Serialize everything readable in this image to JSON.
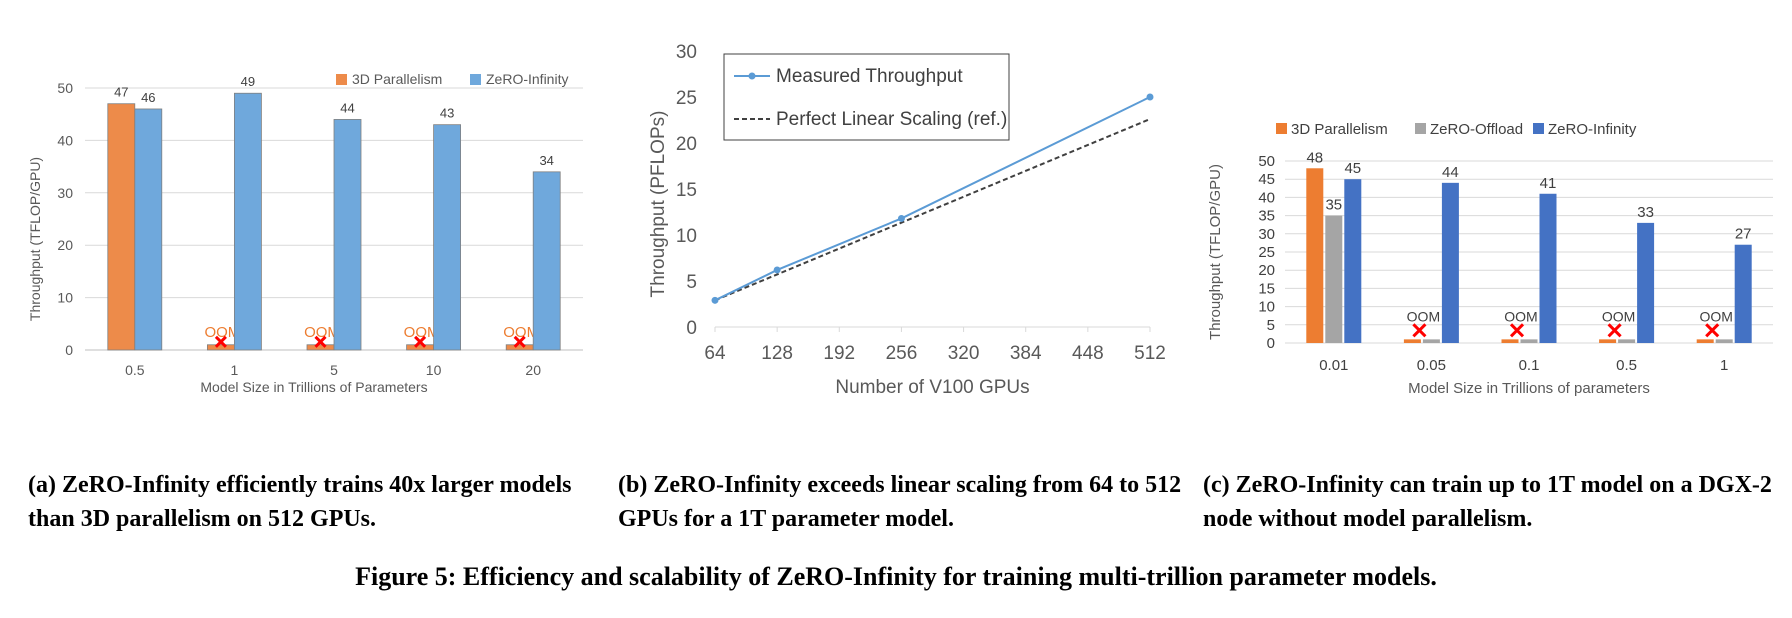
{
  "colors": {
    "orange": "#ED8B4A",
    "light_blue": "#6FA8DC",
    "dark_blue": "#4472C4",
    "gray": "#A5A5A5",
    "bright_orange": "#ED7D31",
    "oom_red": "#FF0000",
    "line_blue": "#5B9BD5"
  },
  "captions": {
    "a": "(a) ZeRO-Infinity efficiently trains 40x larger models than 3D parallelism on 512 GPUs.",
    "b": "(b) ZeRO-Infinity exceeds linear scaling from 64 to 512 GPUs for a 1T parameter model.",
    "c": "(c) ZeRO-Infinity can train up to 1T model on a DGX-2 node without model parallelism.",
    "figure": "Figure 5: Efficiency and scalability of ZeRO-Infinity for training multi-trillion parameter models."
  },
  "oom_label": "OOM",
  "chart_data": [
    {
      "type": "bar",
      "xlabel": "Model Size in Trillions of Parameters",
      "ylabel": "Throughput (TFLOP/GPU)",
      "ylim": [
        0,
        50
      ],
      "yticks": [
        0,
        10,
        20,
        30,
        40,
        50
      ],
      "grid": true,
      "legend": "top-right",
      "categories": [
        "0.5",
        "1",
        "5",
        "10",
        "20"
      ],
      "series": [
        {
          "name": "3D Parallelism",
          "values": [
            47,
            1,
            1,
            1,
            1
          ],
          "labels": [
            "47",
            "OOM",
            "OOM",
            "OOM",
            "OOM"
          ],
          "oom": [
            false,
            true,
            true,
            true,
            true
          ]
        },
        {
          "name": "ZeRO-Infinity",
          "values": [
            46,
            49,
            44,
            43,
            34
          ],
          "labels": [
            "46",
            "49",
            "44",
            "43",
            "34"
          ],
          "oom": [
            false,
            false,
            false,
            false,
            false
          ]
        }
      ]
    },
    {
      "type": "line",
      "xlabel": "Number of V100 GPUs",
      "ylabel": "Throughput (PFLOPs)",
      "xlim": [
        64,
        512
      ],
      "ylim": [
        0,
        30
      ],
      "xticks": [
        64,
        128,
        192,
        256,
        320,
        384,
        448,
        512
      ],
      "yticks": [
        0,
        5,
        10,
        15,
        20,
        25,
        30
      ],
      "legend": "top-left",
      "series": [
        {
          "name": "Measured Throughput",
          "x": [
            64,
            128,
            256,
            512
          ],
          "y": [
            2.9,
            6.2,
            11.8,
            25.0
          ],
          "style": "solid-markers"
        },
        {
          "name": "Perfect Linear Scaling (ref.)",
          "x": [
            64,
            512
          ],
          "y": [
            2.9,
            22.6
          ],
          "style": "dashed"
        }
      ]
    },
    {
      "type": "bar",
      "xlabel": "Model Size in Trillions of parameters",
      "ylabel": "Throughput (TFLOP/GPU)",
      "ylim": [
        0,
        50
      ],
      "yticks": [
        0,
        5,
        10,
        15,
        20,
        25,
        30,
        35,
        40,
        45,
        50
      ],
      "grid": true,
      "legend": "top",
      "categories": [
        "0.01",
        "0.05",
        "0.1",
        "0.5",
        "1"
      ],
      "series": [
        {
          "name": "3D Parallelism",
          "values": [
            48,
            1,
            1,
            1,
            1
          ],
          "labels": [
            "48",
            "",
            "",
            "",
            ""
          ],
          "oom": [
            false,
            true,
            true,
            true,
            true
          ]
        },
        {
          "name": "ZeRO-Offload",
          "values": [
            35,
            1,
            1,
            1,
            1
          ],
          "labels": [
            "35",
            "",
            "",
            "",
            ""
          ],
          "oom": [
            false,
            false,
            false,
            false,
            false
          ]
        },
        {
          "name": "ZeRO-Infinity",
          "values": [
            45,
            44,
            41,
            33,
            27
          ],
          "labels": [
            "45",
            "44",
            "41",
            "33",
            "27"
          ],
          "oom": [
            false,
            false,
            false,
            false,
            false
          ]
        }
      ]
    }
  ]
}
